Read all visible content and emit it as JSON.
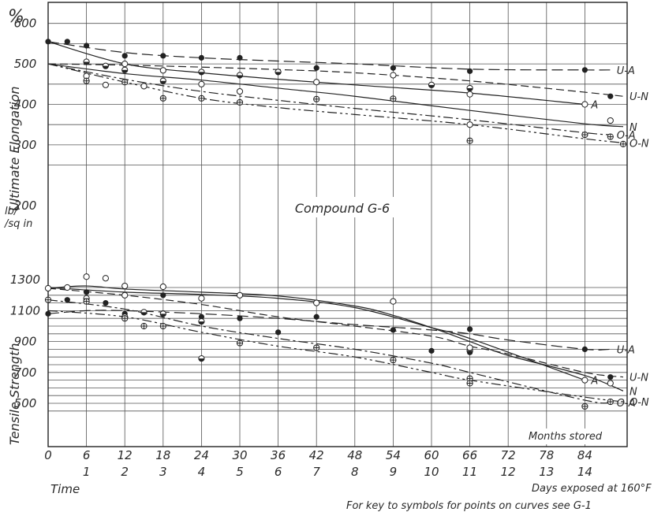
{
  "chart_data": [
    {
      "type": "line",
      "title": "Compound G-6",
      "ylabel": "Ultimate Elongation",
      "yunit": "%",
      "ylim": [
        200,
        650
      ],
      "y_ticks": [
        "300",
        "400",
        "500",
        "600"
      ],
      "x_months_ticks": [
        "0",
        "6",
        "12",
        "18",
        "24",
        "30",
        "36",
        "42",
        "48",
        "54",
        "60",
        "66",
        "72",
        "78",
        "84"
      ],
      "x_days_ticks": [
        "1",
        "2",
        "3",
        "4",
        "5",
        "6",
        "7",
        "8",
        "9",
        "10",
        "11",
        "12",
        "13",
        "14"
      ],
      "series": [
        {
          "name": "U-A",
          "x": [
            0,
            12,
            24,
            36,
            48,
            66,
            84,
            88
          ],
          "values": [
            555,
            528,
            515,
            507,
            500,
            487,
            485,
            485
          ]
        },
        {
          "name": "U-N",
          "x": [
            0,
            12,
            24,
            36,
            48,
            66,
            84,
            90
          ],
          "values": [
            500,
            497,
            492,
            486,
            478,
            458,
            430,
            420
          ]
        },
        {
          "name": "A",
          "x": [
            0,
            12,
            24,
            36,
            48,
            66,
            84
          ],
          "values": [
            555,
            500,
            478,
            462,
            448,
            428,
            400
          ]
        },
        {
          "name": "N",
          "x": [
            0,
            12,
            24,
            36,
            48,
            66,
            84,
            90
          ],
          "values": [
            500,
            476,
            460,
            440,
            420,
            385,
            352,
            345
          ]
        },
        {
          "name": "O-A",
          "x": [
            0,
            12,
            24,
            36,
            48,
            66,
            84,
            88
          ],
          "values": [
            500,
            462,
            432,
            410,
            390,
            362,
            330,
            325
          ]
        },
        {
          "name": "O-N",
          "x": [
            0,
            12,
            24,
            36,
            48,
            66,
            84,
            90
          ],
          "values": [
            500,
            455,
            415,
            392,
            375,
            350,
            315,
            305
          ]
        }
      ],
      "points": [
        {
          "x": 0,
          "y": 555,
          "s": "solid"
        },
        {
          "x": 3,
          "y": 555,
          "s": "solid"
        },
        {
          "x": 6,
          "y": 545,
          "s": "solid"
        },
        {
          "x": 12,
          "y": 520,
          "s": "solid"
        },
        {
          "x": 18,
          "y": 520,
          "s": "solid"
        },
        {
          "x": 24,
          "y": 515,
          "s": "solid"
        },
        {
          "x": 30,
          "y": 515,
          "s": "solid"
        },
        {
          "x": 42,
          "y": 490,
          "s": "solid"
        },
        {
          "x": 54,
          "y": 490,
          "s": "solid"
        },
        {
          "x": 66,
          "y": 482,
          "s": "solid"
        },
        {
          "x": 84,
          "y": 485,
          "s": "solid"
        },
        {
          "x": 88,
          "y": 420,
          "s": "solid"
        },
        {
          "x": 6,
          "y": 505,
          "s": "half"
        },
        {
          "x": 9,
          "y": 495,
          "s": "half"
        },
        {
          "x": 12,
          "y": 485,
          "s": "half"
        },
        {
          "x": 18,
          "y": 458,
          "s": "half"
        },
        {
          "x": 24,
          "y": 480,
          "s": "half"
        },
        {
          "x": 30,
          "y": 472,
          "s": "half"
        },
        {
          "x": 36,
          "y": 480,
          "s": "half"
        },
        {
          "x": 60,
          "y": 448,
          "s": "half"
        },
        {
          "x": 66,
          "y": 440,
          "s": "half"
        },
        {
          "x": 12,
          "y": 500,
          "s": "open"
        },
        {
          "x": 18,
          "y": 484,
          "s": "open"
        },
        {
          "x": 24,
          "y": 450,
          "s": "open"
        },
        {
          "x": 30,
          "y": 432,
          "s": "open"
        },
        {
          "x": 42,
          "y": 455,
          "s": "open"
        },
        {
          "x": 54,
          "y": 472,
          "s": "open"
        },
        {
          "x": 66,
          "y": 425,
          "s": "open"
        },
        {
          "x": 66,
          "y": 350,
          "s": "open"
        },
        {
          "x": 84,
          "y": 400,
          "s": "open"
        },
        {
          "x": 88,
          "y": 360,
          "s": "open"
        },
        {
          "x": 6,
          "y": 470,
          "s": "open"
        },
        {
          "x": 9,
          "y": 448,
          "s": "open"
        },
        {
          "x": 15,
          "y": 445,
          "s": "open"
        },
        {
          "x": 6,
          "y": 458,
          "s": "cross"
        },
        {
          "x": 12,
          "y": 455,
          "s": "cross"
        },
        {
          "x": 18,
          "y": 415,
          "s": "cross"
        },
        {
          "x": 24,
          "y": 415,
          "s": "cross"
        },
        {
          "x": 30,
          "y": 405,
          "s": "cross"
        },
        {
          "x": 42,
          "y": 413,
          "s": "cross"
        },
        {
          "x": 54,
          "y": 414,
          "s": "cross"
        },
        {
          "x": 66,
          "y": 310,
          "s": "cross"
        },
        {
          "x": 84,
          "y": 325,
          "s": "cross"
        },
        {
          "x": 88,
          "y": 320,
          "s": "cross"
        },
        {
          "x": 90,
          "y": 302,
          "s": "cross"
        }
      ]
    },
    {
      "type": "line",
      "ylabel": "Tensile Strength",
      "yunit": "lb/sq in",
      "ylim": [
        400,
        1320
      ],
      "y_ticks": [
        "500",
        "700",
        "900",
        "1100",
        "1300"
      ],
      "xlabel": "Time",
      "series": [
        {
          "name": "U-A",
          "x": [
            0,
            6,
            12,
            24,
            36,
            48,
            60,
            66,
            72,
            84,
            88
          ],
          "values": [
            1080,
            1100,
            1100,
            1080,
            1050,
            1010,
            975,
            950,
            910,
            850,
            850
          ]
        },
        {
          "name": "U-N",
          "x": [
            0,
            12,
            24,
            36,
            48,
            60,
            66,
            72,
            84,
            90
          ],
          "values": [
            1245,
            1200,
            1140,
            1060,
            1000,
            935,
            870,
            820,
            700,
            670
          ]
        },
        {
          "name": "A",
          "x": [
            0,
            12,
            24,
            36,
            48,
            60,
            66,
            84
          ],
          "values": [
            1250,
            1220,
            1205,
            1180,
            1120,
            990,
            920,
            650
          ]
        },
        {
          "name": "N",
          "x": [
            0,
            6,
            12,
            24,
            36,
            48,
            54,
            60,
            66,
            72,
            84,
            90
          ],
          "values": [
            1245,
            1260,
            1240,
            1220,
            1195,
            1130,
            1070,
            990,
            900,
            810,
            680,
            580
          ]
        },
        {
          "name": "O-A",
          "x": [
            0,
            12,
            24,
            36,
            48,
            60,
            66,
            84,
            88
          ],
          "values": [
            1170,
            1110,
            1000,
            920,
            850,
            760,
            700,
            520,
            505
          ]
        },
        {
          "name": "O-N",
          "x": [
            0,
            12,
            24,
            36,
            48,
            60,
            66,
            84,
            90
          ],
          "values": [
            1100,
            1060,
            960,
            870,
            800,
            700,
            650,
            540,
            510
          ]
        }
      ],
      "points": [
        {
          "x": 0,
          "y": 1080,
          "s": "solid"
        },
        {
          "x": 3,
          "y": 1170,
          "s": "solid"
        },
        {
          "x": 6,
          "y": 1220,
          "s": "solid"
        },
        {
          "x": 9,
          "y": 1150,
          "s": "solid"
        },
        {
          "x": 12,
          "y": 1080,
          "s": "solid"
        },
        {
          "x": 18,
          "y": 1200,
          "s": "solid"
        },
        {
          "x": 24,
          "y": 1060,
          "s": "solid"
        },
        {
          "x": 30,
          "y": 1050,
          "s": "solid"
        },
        {
          "x": 36,
          "y": 960,
          "s": "solid"
        },
        {
          "x": 42,
          "y": 1060,
          "s": "solid"
        },
        {
          "x": 54,
          "y": 975,
          "s": "solid"
        },
        {
          "x": 60,
          "y": 840,
          "s": "solid"
        },
        {
          "x": 66,
          "y": 980,
          "s": "solid"
        },
        {
          "x": 66,
          "y": 830,
          "s": "solid"
        },
        {
          "x": 84,
          "y": 850,
          "s": "solid"
        },
        {
          "x": 88,
          "y": 670,
          "s": "solid"
        },
        {
          "x": 6,
          "y": 1180,
          "s": "half"
        },
        {
          "x": 12,
          "y": 1060,
          "s": "half"
        },
        {
          "x": 15,
          "y": 1090,
          "s": "half"
        },
        {
          "x": 18,
          "y": 1080,
          "s": "half"
        },
        {
          "x": 24,
          "y": 1030,
          "s": "half"
        },
        {
          "x": 24,
          "y": 790,
          "s": "half"
        },
        {
          "x": 66,
          "y": 840,
          "s": "half"
        },
        {
          "x": 0,
          "y": 1245,
          "s": "open"
        },
        {
          "x": 3,
          "y": 1250,
          "s": "open"
        },
        {
          "x": 6,
          "y": 1320,
          "s": "open"
        },
        {
          "x": 9,
          "y": 1310,
          "s": "open"
        },
        {
          "x": 12,
          "y": 1260,
          "s": "open"
        },
        {
          "x": 12,
          "y": 1200,
          "s": "open"
        },
        {
          "x": 18,
          "y": 1255,
          "s": "open"
        },
        {
          "x": 24,
          "y": 1180,
          "s": "open"
        },
        {
          "x": 30,
          "y": 1200,
          "s": "open"
        },
        {
          "x": 42,
          "y": 1150,
          "s": "open"
        },
        {
          "x": 54,
          "y": 1160,
          "s": "open"
        },
        {
          "x": 66,
          "y": 860,
          "s": "open"
        },
        {
          "x": 84,
          "y": 650,
          "s": "open"
        },
        {
          "x": 88,
          "y": 630,
          "s": "open"
        },
        {
          "x": 0,
          "y": 1170,
          "s": "cross"
        },
        {
          "x": 6,
          "y": 1160,
          "s": "cross"
        },
        {
          "x": 12,
          "y": 1050,
          "s": "cross"
        },
        {
          "x": 15,
          "y": 1000,
          "s": "cross"
        },
        {
          "x": 18,
          "y": 1000,
          "s": "cross"
        },
        {
          "x": 30,
          "y": 890,
          "s": "cross"
        },
        {
          "x": 42,
          "y": 860,
          "s": "cross"
        },
        {
          "x": 54,
          "y": 780,
          "s": "cross"
        },
        {
          "x": 66,
          "y": 660,
          "s": "cross"
        },
        {
          "x": 66,
          "y": 630,
          "s": "cross"
        },
        {
          "x": 84,
          "y": 480,
          "s": "cross"
        },
        {
          "x": 88,
          "y": 510,
          "s": "cross"
        }
      ]
    }
  ],
  "labels": {
    "months_stored": "Months stored",
    "days_exposed": "Days exposed at 160°F",
    "footnote": "For key to symbols for points on curves see G-1",
    "shared_y_tick": "200",
    "unit_upper": "%",
    "unit_lower_1": "lb/",
    "unit_lower_2": "/sq in"
  }
}
